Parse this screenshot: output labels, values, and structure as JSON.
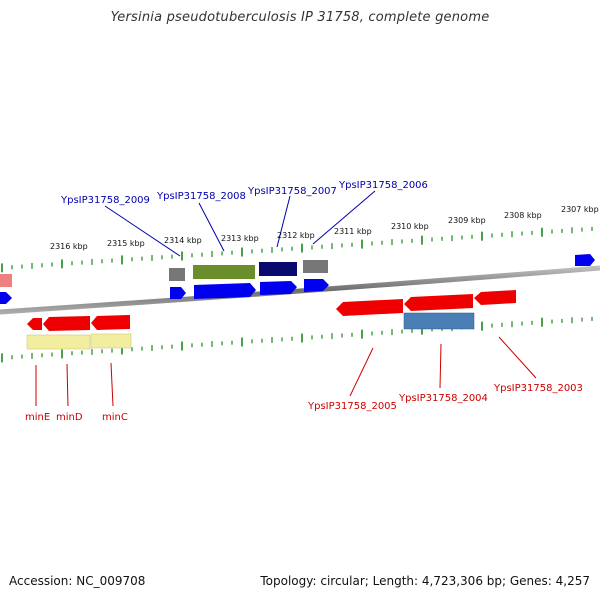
{
  "title": "Yersinia pseudotuberculosis IP 31758, complete genome",
  "footer": {
    "accession": "Accession: NC_009708",
    "summary": "Topology: circular; Length: 4,723,306 bp; Genes: 4,257"
  },
  "colors": {
    "forward_cds": "#0000ee",
    "reverse_cds": "#ee0000",
    "tick_green": "#1a8a1a",
    "label_blue": "#0000aa",
    "label_red": "#cc0000",
    "backbone": "#888888"
  },
  "scale_labels": [
    "2316 kbp",
    "2315 kbp",
    "2314 kbp",
    "2313 kbp",
    "2312 kbp",
    "2311 kbp",
    "2310 kbp",
    "2309 kbp",
    "2308 kbp",
    "2307 kbp"
  ],
  "top_labels": [
    "YpsIP31758_2009",
    "YpsIP31758_2008",
    "YpsIP31758_2007",
    "YpsIP31758_2006"
  ],
  "bottom_labels": [
    "minE",
    "minD",
    "minC",
    "YpsIP31758_2005",
    "YpsIP31758_2004",
    "YpsIP31758_2003"
  ]
}
